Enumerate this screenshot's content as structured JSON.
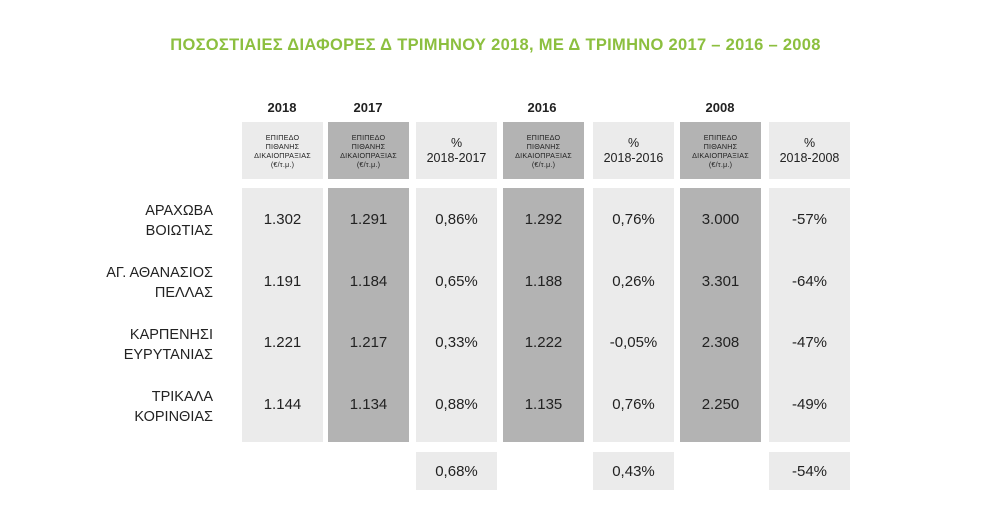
{
  "title": "ΠΟΣΟΣΤΙΑΙΕΣ ΔΙΑΦΟΡΕΣ Δ ΤΡΙΜΗΝΟΥ 2018, ΜΕ Δ ΤΡΙΜΗΝΟ 2017 – 2016 – 2008",
  "years": {
    "y2018": "2018",
    "y2017": "2017",
    "y2016": "2016",
    "y2008": "2008"
  },
  "headers": {
    "level_l1": "ΕΠΙΠΕΔΟ",
    "level_l2": "ΠΙΘΑΝΗΣ",
    "level_l3": "ΔΙΚΑΙΟΠΡΑΞΙΑΣ",
    "level_l4": "(€/τ.μ.)",
    "pct_symbol": "%",
    "pct_2017": "2018-2017",
    "pct_2016": "2018-2016",
    "pct_2008": "2018-2008"
  },
  "rows": [
    {
      "line1": "ΑΡΑΧΩΒΑ",
      "line2": "ΒΟΙΩΤΙΑΣ",
      "v2018": "1.302",
      "v2017": "1.291",
      "p2017": "0,86%",
      "v2016": "1.292",
      "p2016": "0,76%",
      "v2008": "3.000",
      "p2008": "-57%"
    },
    {
      "line1": "ΑΓ. ΑΘΑΝΑΣΙΟΣ",
      "line2": "ΠΕΛΛΑΣ",
      "v2018": "1.191",
      "v2017": "1.184",
      "p2017": "0,65%",
      "v2016": "1.188",
      "p2016": "0,26%",
      "v2008": "3.301",
      "p2008": "-64%"
    },
    {
      "line1": "ΚΑΡΠΕΝΗΣΙ",
      "line2": "ΕΥΡΥΤΑΝΙΑΣ",
      "v2018": "1.221",
      "v2017": "1.217",
      "p2017": "0,33%",
      "v2016": "1.222",
      "p2016": "-0,05%",
      "v2008": "2.308",
      "p2008": "-47%"
    },
    {
      "line1": "ΤΡΙΚΑΛΑ",
      "line2": "ΚΟΡΙΝΘΙΑΣ",
      "v2018": "1.144",
      "v2017": "1.134",
      "p2017": "0,88%",
      "v2016": "1.135",
      "p2016": "0,76%",
      "v2008": "2.250",
      "p2008": "-49%"
    }
  ],
  "averages": {
    "p2017": "0,68%",
    "p2016": "0,43%",
    "p2008": "-54%"
  }
}
